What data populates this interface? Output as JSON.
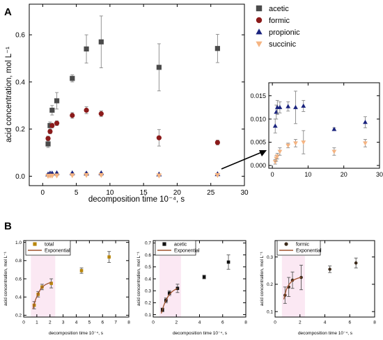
{
  "panel_labels": {
    "a": "A",
    "b": "B"
  },
  "chart_data": [
    {
      "id": "main",
      "type": "scatter",
      "xlabel": "decomposition time 10⁻⁴, s",
      "ylabel": "acid concentration, mol L⁻¹",
      "xlim": [
        -2,
        30
      ],
      "ylim": [
        -0.04,
        0.73
      ],
      "xticks": [
        0,
        5,
        10,
        15,
        20,
        25,
        30
      ],
      "yticks": [
        0.0,
        0.2,
        0.4,
        0.6
      ],
      "ytick_labels": [
        "0.0",
        "0.2",
        "0.4",
        "0.6"
      ],
      "legend_position": "top-right (outside)",
      "series": [
        {
          "name": "acetic",
          "marker": "square",
          "color": "#4a4a4a",
          "x": [
            0.8,
            1.1,
            1.4,
            2.1,
            4.4,
            6.5,
            8.7,
            17.3,
            26.0
          ],
          "y": [
            0.137,
            0.215,
            0.28,
            0.32,
            0.415,
            0.54,
            0.57,
            0.462,
            0.542
          ],
          "err": [
            0.015,
            0.015,
            0.02,
            0.035,
            0.015,
            0.06,
            0.11,
            0.1,
            0.06
          ]
        },
        {
          "name": "formic",
          "marker": "circle",
          "color": "#8b1a1a",
          "x": [
            0.8,
            1.1,
            1.4,
            2.1,
            4.4,
            6.5,
            8.7,
            17.3,
            26.0
          ],
          "y": [
            0.16,
            0.19,
            0.215,
            0.225,
            0.258,
            0.28,
            0.265,
            0.163,
            0.143
          ],
          "err": [
            0.01,
            0.01,
            0.01,
            0.01,
            0.012,
            0.015,
            0.012,
            0.035,
            0.01
          ]
        },
        {
          "name": "propionic",
          "marker": "triangle-up",
          "color": "#1a237e",
          "x": [
            0.8,
            1.1,
            1.4,
            2.1,
            4.4,
            6.5,
            8.7,
            17.3,
            26.0
          ],
          "y": [
            0.008,
            0.012,
            0.012,
            0.013,
            0.013,
            0.012,
            0.013,
            0.008,
            0.009
          ],
          "err": [
            0.002,
            0.003,
            0.003,
            0.002,
            0.002,
            0.004,
            0.002,
            0.001,
            0.002
          ]
        },
        {
          "name": "succinic",
          "marker": "triangle-down",
          "color": "#f5b482",
          "x": [
            0.8,
            1.1,
            1.4,
            2.1,
            4.4,
            6.5,
            8.7,
            17.3,
            26.0
          ],
          "y": [
            0.001,
            0.002,
            0.002,
            0.003,
            0.004,
            0.005,
            0.005,
            0.003,
            0.005
          ],
          "err": [
            0.001,
            0.001,
            0.001,
            0.001,
            0.001,
            0.002,
            0.003,
            0.001,
            0.001
          ]
        }
      ]
    },
    {
      "id": "inset",
      "type": "scatter",
      "xlim": [
        -1,
        30
      ],
      "ylim": [
        -0.0006,
        0.0178
      ],
      "xticks": [
        0,
        10,
        20,
        30
      ],
      "yticks": [
        0.0,
        0.005,
        0.01,
        0.015
      ],
      "ytick_labels": [
        "0.000",
        "0.005",
        "0.010",
        "0.015"
      ],
      "series": [
        {
          "marker": "triangle-up",
          "color": "#1a237e",
          "x": [
            0.8,
            1.1,
            1.4,
            2.1,
            4.4,
            6.5,
            8.7,
            17.3,
            26.0
          ],
          "y": [
            0.0085,
            0.0115,
            0.0125,
            0.0125,
            0.0127,
            0.0125,
            0.0128,
            0.0078,
            0.0093
          ],
          "err": [
            0.0015,
            0.0015,
            0.0015,
            0.0012,
            0.001,
            0.0035,
            0.0012,
            0.0003,
            0.0012
          ]
        },
        {
          "marker": "triangle-down",
          "color": "#f5b482",
          "x": [
            0.8,
            1.1,
            1.4,
            2.1,
            4.4,
            6.5,
            8.7,
            17.3,
            26.0
          ],
          "y": [
            0.0008,
            0.0015,
            0.002,
            0.003,
            0.0043,
            0.0048,
            0.005,
            0.003,
            0.0048
          ],
          "err": [
            0.0005,
            0.0006,
            0.0006,
            0.0008,
            0.0005,
            0.0008,
            0.0025,
            0.0008,
            0.0008
          ]
        }
      ]
    },
    {
      "id": "b1",
      "type": "scatter",
      "xlabel": "decomposition time 10⁻⁴, s",
      "ylabel": "acid concentration, mol L⁻¹",
      "xlim": [
        0,
        8
      ],
      "ylim": [
        0.18,
        1.02
      ],
      "xticks": [
        0,
        1,
        2,
        3,
        4,
        5,
        6,
        7,
        8
      ],
      "yticks": [
        0.2,
        0.4,
        0.6,
        0.8,
        1.0
      ],
      "ytick_labels": [
        "0.2",
        "0.4",
        "0.6",
        "0.8",
        "1.0"
      ],
      "legend_position": "top-left",
      "series": [
        {
          "name": "total",
          "marker": "square",
          "color": "#b8860b",
          "x": [
            0.8,
            1.1,
            1.4,
            2.1,
            4.4,
            6.5
          ],
          "y": [
            0.31,
            0.43,
            0.51,
            0.55,
            0.69,
            0.84
          ],
          "err": [
            0.04,
            0.03,
            0.03,
            0.05,
            0.03,
            0.06
          ]
        },
        {
          "name": "Exponential",
          "marker": "line",
          "color": "#a0522d",
          "x": [
            0.7,
            0.9,
            1.1,
            1.3,
            1.5,
            1.7,
            1.9,
            2.1
          ],
          "y": [
            0.27,
            0.37,
            0.44,
            0.49,
            0.52,
            0.54,
            0.552,
            0.56
          ]
        }
      ]
    },
    {
      "id": "b2",
      "type": "scatter",
      "xlabel": "decomposition time 10⁻⁴, s",
      "ylabel": "acid concentration, mol L⁻¹",
      "xlim": [
        0,
        8
      ],
      "ylim": [
        0.08,
        0.72
      ],
      "xticks": [
        0,
        2,
        4,
        6,
        8
      ],
      "yticks": [
        0.1,
        0.2,
        0.3,
        0.4,
        0.5,
        0.6,
        0.7
      ],
      "ytick_labels": [
        "0.1",
        "0.2",
        "0.3",
        "0.4",
        "0.5",
        "0.6",
        "0.7"
      ],
      "legend_position": "top-left",
      "series": [
        {
          "name": "acetic",
          "marker": "square",
          "color": "#111111",
          "x": [
            0.8,
            1.1,
            1.4,
            2.1,
            4.4,
            6.5
          ],
          "y": [
            0.14,
            0.22,
            0.28,
            0.32,
            0.415,
            0.54
          ],
          "err": [
            0.015,
            0.02,
            0.02,
            0.035,
            0.015,
            0.06
          ]
        },
        {
          "name": "Exponential",
          "marker": "line",
          "color": "#a0522d",
          "x": [
            0.7,
            0.9,
            1.1,
            1.3,
            1.5,
            1.7,
            1.9,
            2.1
          ],
          "y": [
            0.11,
            0.175,
            0.22,
            0.255,
            0.28,
            0.298,
            0.31,
            0.32
          ]
        }
      ]
    },
    {
      "id": "b3",
      "type": "scatter",
      "xlabel": "decomposition time 10⁻⁴, s",
      "ylabel": "acid concentration, mol L⁻¹",
      "xlim": [
        0,
        8
      ],
      "ylim": [
        0.08,
        0.36
      ],
      "xticks": [
        0,
        2,
        4,
        6,
        8
      ],
      "yticks": [
        0.1,
        0.2,
        0.3
      ],
      "ytick_labels": [
        "0.1",
        "0.2",
        "0.3"
      ],
      "legend_position": "top-left",
      "series": [
        {
          "name": "formic",
          "marker": "circle",
          "color": "#3b2a1a",
          "x": [
            0.8,
            1.1,
            1.4,
            2.1,
            4.4,
            6.5
          ],
          "y": [
            0.16,
            0.19,
            0.215,
            0.225,
            0.255,
            0.278
          ],
          "err": [
            0.03,
            0.035,
            0.03,
            0.045,
            0.012,
            0.018
          ]
        },
        {
          "name": "Exponential",
          "marker": "line",
          "color": "#a0522d",
          "x": [
            0.7,
            0.9,
            1.1,
            1.3,
            1.5,
            1.7,
            1.9,
            2.1
          ],
          "y": [
            0.145,
            0.18,
            0.198,
            0.209,
            0.216,
            0.22,
            0.223,
            0.225
          ]
        }
      ]
    }
  ]
}
